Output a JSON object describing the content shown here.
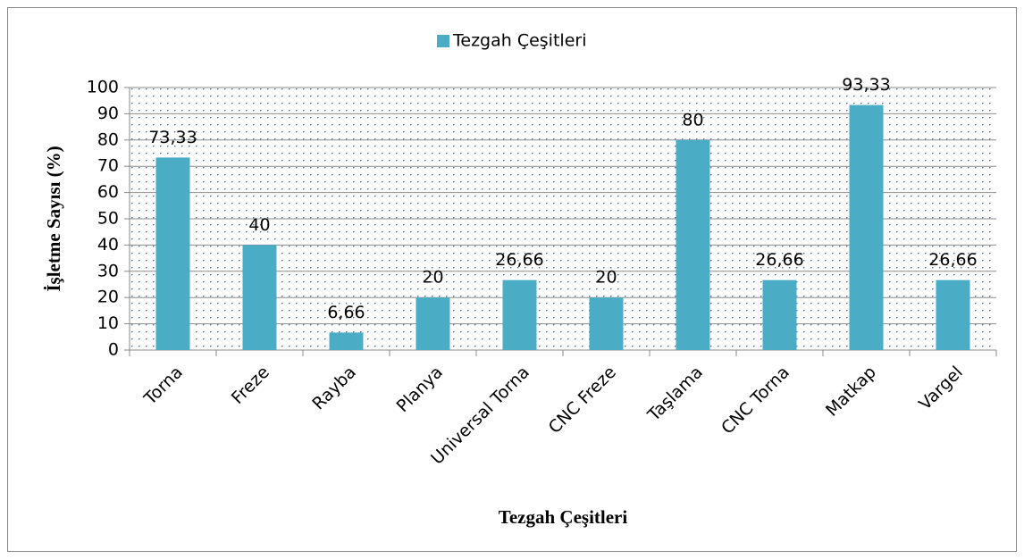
{
  "chart_data": {
    "type": "bar",
    "x_label": "Tezgah Çeşitleri",
    "y_label": "İşletme Sayısı (%)",
    "categories": [
      "Torna",
      "Freze",
      "Rayba",
      "Planya",
      "Universal Torna",
      "CNC Freze",
      "Taşlama",
      "CNC Torna",
      "Matkap",
      "Vargel"
    ],
    "series": [
      {
        "name": "Tezgah Çeşitleri",
        "color": "#4bacc6",
        "values": [
          73.33,
          40,
          6.66,
          20,
          26.66,
          20,
          80,
          26.66,
          93.33,
          26.66
        ],
        "value_labels": [
          "73,33",
          "40",
          "6,66",
          "20",
          "26,66",
          "20",
          "80",
          "26,66",
          "93,33",
          "26,66"
        ]
      }
    ],
    "ylim": [
      0,
      100
    ],
    "yticks": [
      0,
      10,
      20,
      30,
      40,
      50,
      60,
      70,
      80,
      90,
      100
    ],
    "grid": true,
    "legend": "top"
  }
}
